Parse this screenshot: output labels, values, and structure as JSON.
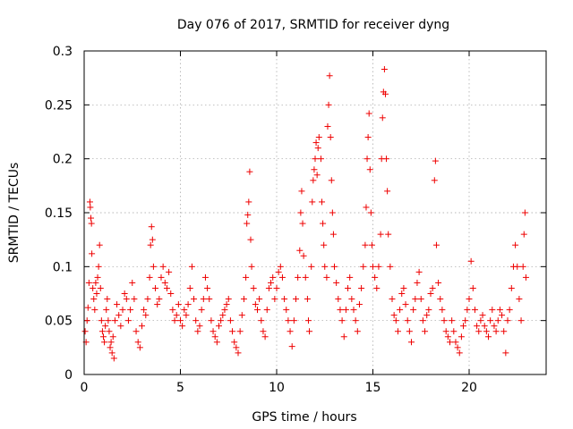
{
  "chart_data": {
    "type": "scatter",
    "title": "Day 076 of 2017, SRMTID for receiver dyng",
    "xlabel": "GPS time / hours",
    "ylabel": "SRMTID / TECUs",
    "xlim": [
      0,
      24
    ],
    "ylim": [
      0,
      0.3
    ],
    "xticks": [
      0,
      5,
      10,
      15,
      20
    ],
    "xtick_labels": [
      "0",
      "5",
      "10",
      "15",
      "20"
    ],
    "yticks": [
      0,
      0.05,
      0.1,
      0.15,
      0.2,
      0.25,
      0.3
    ],
    "ytick_labels": [
      "0",
      "0.05",
      "0.1",
      "0.15",
      "0.2",
      "0.25",
      "0.3"
    ],
    "grid": true,
    "marker": "+",
    "color": "#ee0000",
    "series": [
      {
        "name": "SRMTID",
        "points": [
          [
            0.05,
            0.04
          ],
          [
            0.1,
            0.03
          ],
          [
            0.15,
            0.05
          ],
          [
            0.2,
            0.062
          ],
          [
            0.25,
            0.085
          ],
          [
            0.3,
            0.16
          ],
          [
            0.32,
            0.155
          ],
          [
            0.35,
            0.145
          ],
          [
            0.38,
            0.14
          ],
          [
            0.4,
            0.112
          ],
          [
            0.45,
            0.08
          ],
          [
            0.5,
            0.07
          ],
          [
            0.55,
            0.06
          ],
          [
            0.6,
            0.085
          ],
          [
            0.65,
            0.075
          ],
          [
            0.7,
            0.09
          ],
          [
            0.75,
            0.1
          ],
          [
            0.8,
            0.12
          ],
          [
            0.85,
            0.08
          ],
          [
            0.9,
            0.05
          ],
          [
            0.95,
            0.04
          ],
          [
            1.0,
            0.035
          ],
          [
            1.05,
            0.03
          ],
          [
            1.1,
            0.045
          ],
          [
            1.15,
            0.06
          ],
          [
            1.2,
            0.07
          ],
          [
            1.25,
            0.05
          ],
          [
            1.3,
            0.04
          ],
          [
            1.35,
            0.025
          ],
          [
            1.4,
            0.03
          ],
          [
            1.45,
            0.02
          ],
          [
            1.5,
            0.035
          ],
          [
            1.55,
            0.015
          ],
          [
            1.6,
            0.05
          ],
          [
            1.7,
            0.065
          ],
          [
            1.8,
            0.055
          ],
          [
            1.9,
            0.045
          ],
          [
            2.0,
            0.06
          ],
          [
            2.1,
            0.075
          ],
          [
            2.2,
            0.07
          ],
          [
            2.3,
            0.05
          ],
          [
            2.4,
            0.06
          ],
          [
            2.5,
            0.085
          ],
          [
            2.6,
            0.07
          ],
          [
            2.7,
            0.04
          ],
          [
            2.8,
            0.03
          ],
          [
            2.9,
            0.025
          ],
          [
            3.0,
            0.045
          ],
          [
            3.1,
            0.06
          ],
          [
            3.2,
            0.055
          ],
          [
            3.3,
            0.07
          ],
          [
            3.4,
            0.09
          ],
          [
            3.45,
            0.12
          ],
          [
            3.5,
            0.137
          ],
          [
            3.55,
            0.125
          ],
          [
            3.6,
            0.1
          ],
          [
            3.7,
            0.08
          ],
          [
            3.8,
            0.065
          ],
          [
            3.9,
            0.07
          ],
          [
            4.0,
            0.09
          ],
          [
            4.1,
            0.1
          ],
          [
            4.2,
            0.085
          ],
          [
            4.3,
            0.08
          ],
          [
            4.4,
            0.095
          ],
          [
            4.5,
            0.075
          ],
          [
            4.6,
            0.06
          ],
          [
            4.7,
            0.05
          ],
          [
            4.8,
            0.055
          ],
          [
            4.9,
            0.065
          ],
          [
            5.0,
            0.05
          ],
          [
            5.1,
            0.045
          ],
          [
            5.2,
            0.06
          ],
          [
            5.3,
            0.055
          ],
          [
            5.4,
            0.065
          ],
          [
            5.5,
            0.08
          ],
          [
            5.6,
            0.1
          ],
          [
            5.7,
            0.07
          ],
          [
            5.8,
            0.05
          ],
          [
            5.9,
            0.04
          ],
          [
            6.0,
            0.045
          ],
          [
            6.1,
            0.06
          ],
          [
            6.2,
            0.07
          ],
          [
            6.3,
            0.09
          ],
          [
            6.4,
            0.08
          ],
          [
            6.5,
            0.07
          ],
          [
            6.6,
            0.05
          ],
          [
            6.7,
            0.04
          ],
          [
            6.8,
            0.035
          ],
          [
            6.9,
            0.03
          ],
          [
            7.0,
            0.045
          ],
          [
            7.1,
            0.05
          ],
          [
            7.2,
            0.055
          ],
          [
            7.3,
            0.06
          ],
          [
            7.4,
            0.065
          ],
          [
            7.5,
            0.07
          ],
          [
            7.6,
            0.05
          ],
          [
            7.7,
            0.04
          ],
          [
            7.8,
            0.03
          ],
          [
            7.9,
            0.025
          ],
          [
            8.0,
            0.02
          ],
          [
            8.1,
            0.04
          ],
          [
            8.2,
            0.055
          ],
          [
            8.3,
            0.07
          ],
          [
            8.4,
            0.09
          ],
          [
            8.45,
            0.14
          ],
          [
            8.5,
            0.148
          ],
          [
            8.55,
            0.16
          ],
          [
            8.6,
            0.188
          ],
          [
            8.65,
            0.125
          ],
          [
            8.7,
            0.1
          ],
          [
            8.8,
            0.08
          ],
          [
            8.9,
            0.065
          ],
          [
            9.0,
            0.06
          ],
          [
            9.1,
            0.07
          ],
          [
            9.2,
            0.05
          ],
          [
            9.3,
            0.04
          ],
          [
            9.4,
            0.035
          ],
          [
            9.5,
            0.06
          ],
          [
            9.6,
            0.08
          ],
          [
            9.7,
            0.085
          ],
          [
            9.8,
            0.09
          ],
          [
            9.9,
            0.07
          ],
          [
            10.0,
            0.08
          ],
          [
            10.1,
            0.095
          ],
          [
            10.2,
            0.1
          ],
          [
            10.3,
            0.09
          ],
          [
            10.4,
            0.07
          ],
          [
            10.5,
            0.06
          ],
          [
            10.6,
            0.05
          ],
          [
            10.7,
            0.04
          ],
          [
            10.8,
            0.026
          ],
          [
            10.9,
            0.05
          ],
          [
            11.0,
            0.07
          ],
          [
            11.1,
            0.09
          ],
          [
            11.2,
            0.115
          ],
          [
            11.25,
            0.15
          ],
          [
            11.3,
            0.17
          ],
          [
            11.35,
            0.14
          ],
          [
            11.4,
            0.11
          ],
          [
            11.5,
            0.09
          ],
          [
            11.6,
            0.07
          ],
          [
            11.65,
            0.05
          ],
          [
            11.7,
            0.04
          ],
          [
            11.8,
            0.1
          ],
          [
            11.85,
            0.16
          ],
          [
            11.9,
            0.18
          ],
          [
            11.95,
            0.19
          ],
          [
            12.0,
            0.2
          ],
          [
            12.05,
            0.215
          ],
          [
            12.1,
            0.185
          ],
          [
            12.15,
            0.21
          ],
          [
            12.2,
            0.22
          ],
          [
            12.3,
            0.2
          ],
          [
            12.35,
            0.16
          ],
          [
            12.4,
            0.14
          ],
          [
            12.45,
            0.12
          ],
          [
            12.5,
            0.1
          ],
          [
            12.6,
            0.09
          ],
          [
            12.65,
            0.23
          ],
          [
            12.7,
            0.25
          ],
          [
            12.75,
            0.277
          ],
          [
            12.8,
            0.22
          ],
          [
            12.85,
            0.18
          ],
          [
            12.9,
            0.15
          ],
          [
            12.95,
            0.13
          ],
          [
            13.0,
            0.1
          ],
          [
            13.1,
            0.085
          ],
          [
            13.2,
            0.07
          ],
          [
            13.3,
            0.06
          ],
          [
            13.4,
            0.05
          ],
          [
            13.5,
            0.035
          ],
          [
            13.6,
            0.06
          ],
          [
            13.7,
            0.08
          ],
          [
            13.8,
            0.09
          ],
          [
            13.9,
            0.07
          ],
          [
            14.0,
            0.06
          ],
          [
            14.1,
            0.05
          ],
          [
            14.2,
            0.04
          ],
          [
            14.3,
            0.065
          ],
          [
            14.4,
            0.08
          ],
          [
            14.5,
            0.1
          ],
          [
            14.6,
            0.12
          ],
          [
            14.65,
            0.155
          ],
          [
            14.7,
            0.2
          ],
          [
            14.75,
            0.22
          ],
          [
            14.8,
            0.242
          ],
          [
            14.85,
            0.19
          ],
          [
            14.9,
            0.15
          ],
          [
            14.95,
            0.12
          ],
          [
            15.0,
            0.1
          ],
          [
            15.1,
            0.09
          ],
          [
            15.2,
            0.08
          ],
          [
            15.3,
            0.1
          ],
          [
            15.4,
            0.13
          ],
          [
            15.45,
            0.2
          ],
          [
            15.5,
            0.238
          ],
          [
            15.55,
            0.262
          ],
          [
            15.6,
            0.283
          ],
          [
            15.65,
            0.26
          ],
          [
            15.7,
            0.2
          ],
          [
            15.75,
            0.17
          ],
          [
            15.8,
            0.13
          ],
          [
            15.9,
            0.1
          ],
          [
            16.0,
            0.07
          ],
          [
            16.1,
            0.055
          ],
          [
            16.2,
            0.05
          ],
          [
            16.3,
            0.04
          ],
          [
            16.4,
            0.06
          ],
          [
            16.5,
            0.075
          ],
          [
            16.6,
            0.08
          ],
          [
            16.7,
            0.065
          ],
          [
            16.8,
            0.05
          ],
          [
            16.9,
            0.04
          ],
          [
            17.0,
            0.03
          ],
          [
            17.1,
            0.06
          ],
          [
            17.2,
            0.07
          ],
          [
            17.3,
            0.085
          ],
          [
            17.4,
            0.095
          ],
          [
            17.5,
            0.07
          ],
          [
            17.6,
            0.05
          ],
          [
            17.7,
            0.04
          ],
          [
            17.8,
            0.055
          ],
          [
            17.9,
            0.06
          ],
          [
            18.0,
            0.075
          ],
          [
            18.1,
            0.08
          ],
          [
            18.2,
            0.18
          ],
          [
            18.25,
            0.198
          ],
          [
            18.3,
            0.12
          ],
          [
            18.4,
            0.085
          ],
          [
            18.5,
            0.07
          ],
          [
            18.6,
            0.06
          ],
          [
            18.7,
            0.05
          ],
          [
            18.8,
            0.04
          ],
          [
            18.9,
            0.035
          ],
          [
            19.0,
            0.03
          ],
          [
            19.1,
            0.05
          ],
          [
            19.2,
            0.04
          ],
          [
            19.3,
            0.03
          ],
          [
            19.4,
            0.025
          ],
          [
            19.5,
            0.02
          ],
          [
            19.6,
            0.035
          ],
          [
            19.7,
            0.045
          ],
          [
            19.8,
            0.05
          ],
          [
            19.9,
            0.06
          ],
          [
            20.0,
            0.07
          ],
          [
            20.1,
            0.105
          ],
          [
            20.2,
            0.08
          ],
          [
            20.3,
            0.06
          ],
          [
            20.4,
            0.045
          ],
          [
            20.5,
            0.04
          ],
          [
            20.6,
            0.05
          ],
          [
            20.7,
            0.055
          ],
          [
            20.8,
            0.045
          ],
          [
            20.9,
            0.04
          ],
          [
            21.0,
            0.035
          ],
          [
            21.1,
            0.05
          ],
          [
            21.2,
            0.06
          ],
          [
            21.3,
            0.045
          ],
          [
            21.4,
            0.04
          ],
          [
            21.5,
            0.05
          ],
          [
            21.6,
            0.06
          ],
          [
            21.7,
            0.055
          ],
          [
            21.8,
            0.04
          ],
          [
            21.9,
            0.02
          ],
          [
            22.0,
            0.05
          ],
          [
            22.1,
            0.06
          ],
          [
            22.2,
            0.08
          ],
          [
            22.3,
            0.1
          ],
          [
            22.4,
            0.12
          ],
          [
            22.5,
            0.1
          ],
          [
            22.6,
            0.07
          ],
          [
            22.7,
            0.05
          ],
          [
            22.8,
            0.1
          ],
          [
            22.85,
            0.13
          ],
          [
            22.9,
            0.15
          ],
          [
            22.95,
            0.09
          ]
        ]
      }
    ]
  }
}
